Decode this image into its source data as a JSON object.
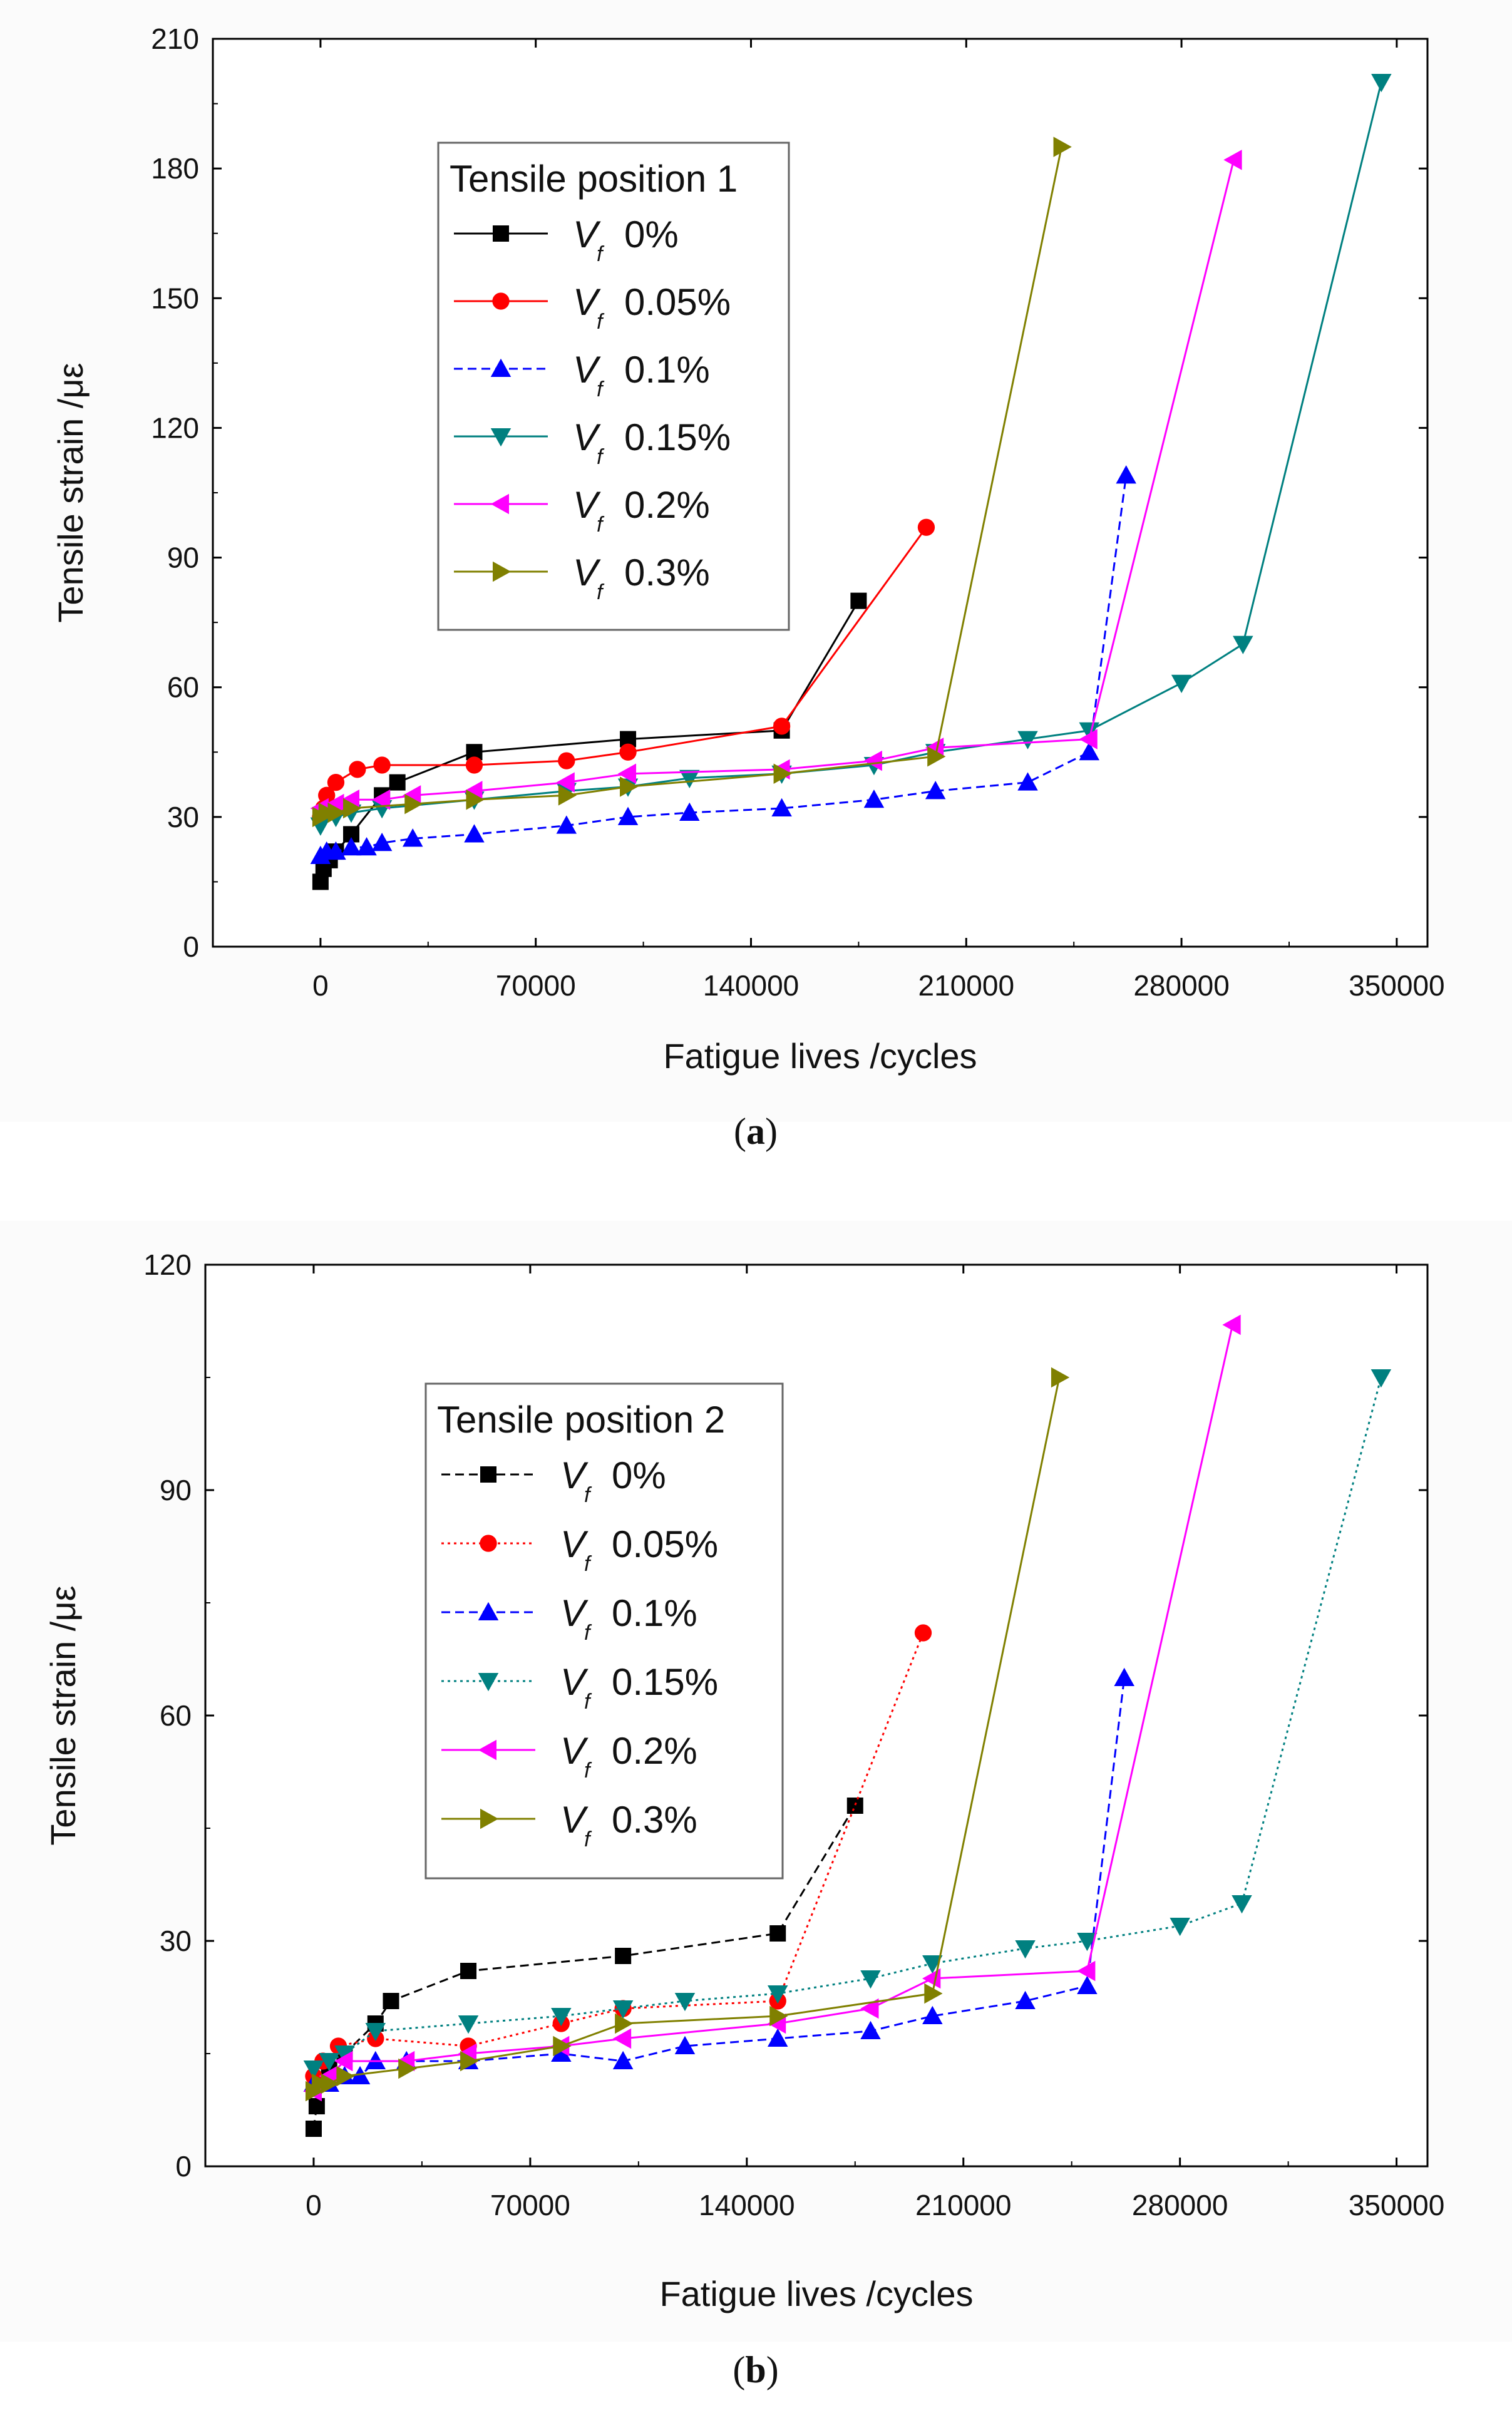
{
  "chart_data": [
    {
      "type": "line",
      "panel_label": "(a)",
      "panel_letter": "a",
      "xlabel": "Fatigue lives   /cycles",
      "ylabel": "Tensile strain   /με",
      "xlim": [
        -35000,
        360000
      ],
      "ylim": [
        0,
        210
      ],
      "xticks": [
        0,
        70000,
        140000,
        210000,
        280000,
        350000
      ],
      "yticks": [
        0,
        30,
        60,
        90,
        120,
        150,
        180,
        210
      ],
      "legend": {
        "title": "Tensile position 1",
        "placement": "top-left"
      },
      "series": [
        {
          "name": "V_f 0%",
          "v": "V",
          "sub": "f",
          "value_label": "0%",
          "color": "#000000",
          "marker": "square",
          "dash": "solid",
          "x": [
            0,
            1000,
            3000,
            5000,
            10000,
            20000,
            25000,
            50000,
            100000,
            150000,
            175000
          ],
          "y": [
            15,
            18,
            20,
            22,
            26,
            35,
            38,
            45,
            48,
            50,
            80
          ]
        },
        {
          "name": "V_f 0.05%",
          "v": "V",
          "sub": "f",
          "value_label": "0.05%",
          "color": "#ff0000",
          "marker": "circle",
          "dash": "solid",
          "x": [
            0,
            1000,
            2000,
            5000,
            12000,
            20000,
            50000,
            80000,
            100000,
            150000,
            197000
          ],
          "y": [
            30,
            32,
            35,
            38,
            41,
            42,
            42,
            43,
            45,
            51,
            97
          ]
        },
        {
          "name": "V_f 0.1%",
          "v": "V",
          "sub": "f",
          "value_label": "0.1%",
          "color": "#0000ff",
          "marker": "triangle-up",
          "dash": "dashed",
          "x": [
            0,
            2000,
            5000,
            10000,
            15000,
            20000,
            30000,
            50000,
            80000,
            100000,
            120000,
            150000,
            180000,
            200000,
            230000,
            250000,
            262000
          ],
          "y": [
            21,
            22,
            22,
            23,
            23,
            24,
            25,
            26,
            28,
            30,
            31,
            32,
            34,
            36,
            38,
            45,
            109
          ]
        },
        {
          "name": "V_f 0.15%",
          "v": "V",
          "sub": "f",
          "value_label": "0.15%",
          "color": "#008080",
          "marker": "triangle-down",
          "dash": "solid",
          "x": [
            0,
            5000,
            10000,
            20000,
            50000,
            80000,
            100000,
            120000,
            150000,
            180000,
            200000,
            230000,
            250000,
            280000,
            300000,
            345000
          ],
          "y": [
            28,
            30,
            31,
            32,
            34,
            36,
            37,
            39,
            40,
            42,
            45,
            48,
            50,
            61,
            70,
            200
          ]
        },
        {
          "name": "V_f 0.2%",
          "v": "V",
          "sub": "f",
          "value_label": "0.2%",
          "color": "#ff00ff",
          "marker": "triangle-left",
          "dash": "solid",
          "x": [
            0,
            5000,
            10000,
            20000,
            30000,
            50000,
            80000,
            100000,
            150000,
            180000,
            200000,
            250000,
            297000
          ],
          "y": [
            32,
            33,
            34,
            34,
            35,
            36,
            38,
            40,
            41,
            43,
            46,
            48,
            182
          ]
        },
        {
          "name": "V_f 0.3%",
          "v": "V",
          "sub": "f",
          "value_label": "0.3%",
          "color": "#808000",
          "marker": "triangle-right",
          "dash": "solid",
          "x": [
            0,
            2000,
            5000,
            10000,
            30000,
            50000,
            80000,
            100000,
            150000,
            200000,
            241000
          ],
          "y": [
            30,
            31,
            31,
            32,
            33,
            34,
            35,
            37,
            40,
            44,
            185
          ]
        }
      ]
    },
    {
      "type": "line",
      "panel_label": "(b)",
      "panel_letter": "b",
      "xlabel": "Fatigue lives   /cycles",
      "ylabel": "Tensile strain   /με",
      "xlim": [
        -35000,
        360000
      ],
      "ylim": [
        0,
        120
      ],
      "xticks": [
        0,
        70000,
        140000,
        210000,
        280000,
        350000
      ],
      "yticks": [
        0,
        30,
        60,
        90,
        120
      ],
      "legend": {
        "title": "Tensile position 2",
        "placement": "top-left"
      },
      "series": [
        {
          "name": "V_f 0%",
          "v": "V",
          "sub": "f",
          "value_label": "0%",
          "color": "#000000",
          "marker": "square",
          "dash": "dashed",
          "x": [
            0,
            1000,
            5000,
            10000,
            20000,
            25000,
            50000,
            100000,
            150000,
            175000
          ],
          "y": [
            5,
            8,
            13,
            15,
            19,
            22,
            26,
            28,
            31,
            48
          ]
        },
        {
          "name": "V_f 0.05%",
          "v": "V",
          "sub": "f",
          "value_label": "0.05%",
          "color": "#ff0000",
          "marker": "circle",
          "dash": "dotted",
          "x": [
            0,
            3000,
            8000,
            20000,
            50000,
            80000,
            100000,
            150000,
            197000
          ],
          "y": [
            12,
            14,
            16,
            17,
            16,
            19,
            21,
            22,
            71
          ]
        },
        {
          "name": "V_f 0.1%",
          "v": "V",
          "sub": "f",
          "value_label": "0.1%",
          "color": "#0000ff",
          "marker": "triangle-up",
          "dash": "dashed",
          "x": [
            0,
            5000,
            10000,
            15000,
            20000,
            30000,
            50000,
            80000,
            100000,
            120000,
            150000,
            180000,
            200000,
            230000,
            250000,
            262000
          ],
          "y": [
            11,
            11,
            12,
            12,
            14,
            14,
            14,
            15,
            14,
            16,
            17,
            18,
            20,
            22,
            24,
            65
          ]
        },
        {
          "name": "V_f 0.15%",
          "v": "V",
          "sub": "f",
          "value_label": "0.15%",
          "color": "#008080",
          "marker": "triangle-down",
          "dash": "dotted",
          "x": [
            0,
            5000,
            10000,
            20000,
            50000,
            80000,
            100000,
            120000,
            150000,
            180000,
            200000,
            230000,
            250000,
            280000,
            300000,
            345000
          ],
          "y": [
            13,
            14,
            15,
            18,
            19,
            20,
            21,
            22,
            23,
            25,
            27,
            29,
            30,
            32,
            35,
            105
          ]
        },
        {
          "name": "V_f 0.2%",
          "v": "V",
          "sub": "f",
          "value_label": "0.2%",
          "color": "#ff00ff",
          "marker": "triangle-left",
          "dash": "solid",
          "x": [
            0,
            5000,
            10000,
            30000,
            50000,
            80000,
            100000,
            150000,
            180000,
            200000,
            250000,
            297000
          ],
          "y": [
            10,
            12,
            14,
            14,
            15,
            16,
            17,
            19,
            21,
            25,
            26,
            112
          ]
        },
        {
          "name": "V_f 0.3%",
          "v": "V",
          "sub": "f",
          "value_label": "0.3%",
          "color": "#808000",
          "marker": "triangle-right",
          "dash": "solid",
          "x": [
            0,
            2000,
            5000,
            10000,
            30000,
            50000,
            80000,
            100000,
            150000,
            200000,
            241000
          ],
          "y": [
            10,
            11,
            11,
            12,
            13,
            14,
            16,
            19,
            20,
            23,
            105
          ]
        }
      ]
    }
  ]
}
